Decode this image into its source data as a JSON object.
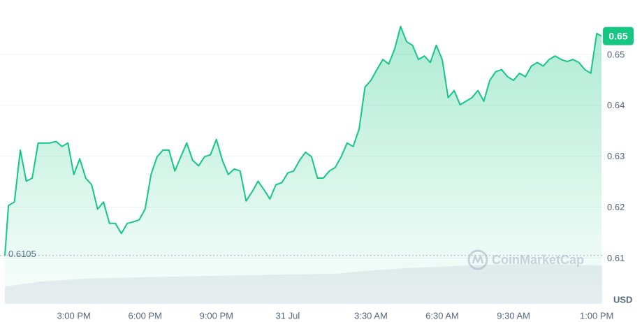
{
  "chart_data": {
    "type": "line",
    "x": [
      12.1,
      12.25,
      12.5,
      12.75,
      13.0,
      13.25,
      13.5,
      13.75,
      14.0,
      14.25,
      14.5,
      14.75,
      15.0,
      15.25,
      15.5,
      15.75,
      16.0,
      16.25,
      16.5,
      16.75,
      17.0,
      17.25,
      17.5,
      17.75,
      18.0,
      18.25,
      18.5,
      18.75,
      19.0,
      19.25,
      19.5,
      19.75,
      20.0,
      20.25,
      20.5,
      20.75,
      21.0,
      21.25,
      21.5,
      21.75,
      22.0,
      22.25,
      22.5,
      22.75,
      23.0,
      23.25,
      23.5,
      23.75,
      24.0,
      24.25,
      24.5,
      24.75,
      25.0,
      25.25,
      25.5,
      25.75,
      26.0,
      26.25,
      26.5,
      26.75,
      27.0,
      27.25,
      27.5,
      27.75,
      28.0,
      28.25,
      28.5,
      28.75,
      29.0,
      29.25,
      29.5,
      29.75,
      30.0,
      30.25,
      30.5,
      30.75,
      31.0,
      31.25,
      31.5,
      31.75,
      32.0,
      32.25,
      32.5,
      32.75,
      33.0,
      33.25,
      33.5,
      33.75,
      34.0,
      34.25,
      34.5,
      34.75,
      35.0,
      35.25,
      35.5,
      35.75,
      36.0,
      36.25,
      36.5,
      36.75,
      37.0,
      37.2
    ],
    "series": [
      {
        "color": "#16c784",
        "values": [
          0.6105,
          0.6203,
          0.621,
          0.6312,
          0.6251,
          0.6257,
          0.6326,
          0.6326,
          0.6326,
          0.6329,
          0.6319,
          0.6326,
          0.6264,
          0.6295,
          0.6257,
          0.6244,
          0.6196,
          0.621,
          0.6168,
          0.6168,
          0.6148,
          0.6168,
          0.6171,
          0.6175,
          0.6196,
          0.6264,
          0.6299,
          0.6312,
          0.6312,
          0.6271,
          0.6299,
          0.6326,
          0.6292,
          0.6281,
          0.6299,
          0.6303,
          0.6333,
          0.6292,
          0.6264,
          0.6275,
          0.6271,
          0.6212,
          0.623,
          0.6251,
          0.6234,
          0.6216,
          0.6244,
          0.6248,
          0.6267,
          0.6271,
          0.6292,
          0.6308,
          0.6299,
          0.6257,
          0.6257,
          0.6271,
          0.6278,
          0.6299,
          0.6326,
          0.6319,
          0.6353,
          0.6436,
          0.6449,
          0.647,
          0.649,
          0.6481,
          0.6511,
          0.6555,
          0.6525,
          0.6518,
          0.649,
          0.6497,
          0.6484,
          0.6518,
          0.649,
          0.6415,
          0.6429,
          0.6401,
          0.6408,
          0.6415,
          0.6429,
          0.6408,
          0.6449,
          0.6466,
          0.647,
          0.6456,
          0.6449,
          0.6463,
          0.6456,
          0.6477,
          0.6484,
          0.6477,
          0.649,
          0.6497,
          0.649,
          0.6486,
          0.649,
          0.6484,
          0.647,
          0.6463,
          0.6541,
          0.6536
        ]
      }
    ],
    "xlim": [
      12.1,
      37.2
    ],
    "xticks": [
      {
        "value": 15,
        "label": "3:00 PM"
      },
      {
        "value": 18,
        "label": "6:00 PM"
      },
      {
        "value": 21,
        "label": "9:00 PM"
      },
      {
        "value": 24,
        "label": "31 Jul"
      },
      {
        "value": 27.5,
        "label": "3:30 AM"
      },
      {
        "value": 30.5,
        "label": "6:30 AM"
      },
      {
        "value": 33.5,
        "label": "9:30 AM"
      },
      {
        "value": 37,
        "label": "1:00 PM"
      }
    ],
    "ylim": [
      0.601,
      0.66
    ],
    "yticks": [
      0.61,
      0.62,
      0.63,
      0.64,
      0.65
    ],
    "grid": true,
    "reference_line": 0.6105,
    "current_price": {
      "value": 0.6536,
      "label": "0.65"
    },
    "currency": "USD",
    "watermark": "CoinMarketCap"
  }
}
